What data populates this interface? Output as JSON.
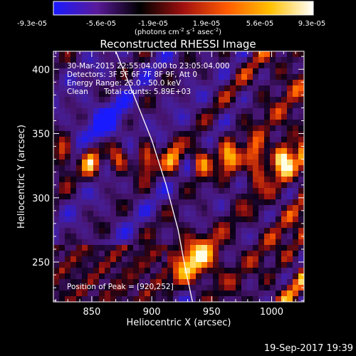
{
  "chart_data": {
    "type": "heatmap",
    "title": "Reconstructed RHESSI Image",
    "xlabel": "Heliocentric X (arcsec)",
    "ylabel": "Heliocentric Y (arcsec)",
    "xlim": [
      818,
      1027
    ],
    "ylim": [
      219,
      414
    ],
    "xticks": [
      850,
      900,
      950,
      1000
    ],
    "yticks": [
      250,
      300,
      350,
      400
    ],
    "colorbar": {
      "ticks": [
        "-9.3e-05",
        "-5.6e-05",
        "-1.9e-05",
        "1.9e-05",
        "5.6e-05",
        "9.3e-05"
      ],
      "unit_main": "(photons cm",
      "unit_exp1": "-2",
      "unit_mid": " s",
      "unit_exp2": "-1",
      "unit_after": " asec",
      "unit_exp3": "-2",
      "unit_close": ")",
      "colors": [
        "#1a1aff",
        "#5a1a9a",
        "#000000",
        "#a01010",
        "#ff5a00",
        "#ffc000",
        "#ffffff"
      ]
    },
    "annotations": {
      "time_range": "30-Mar-2015 22:55:04.000 to 23:05:04.000",
      "detectors": "Detectors: 3F 5F 6F 7F 8F 9F, Att 0",
      "energy_range": "Energy Range: 25.0 - 50.0 keV",
      "method": "Clean",
      "total_counts": "Total counts: 5.89E+03",
      "peak": "Position of Peak = [920,252]"
    },
    "limb_curve": [
      [
        870,
        414
      ],
      [
        885,
        380
      ],
      [
        900,
        345
      ],
      [
        912,
        310
      ],
      [
        922,
        275
      ],
      [
        928,
        245
      ],
      [
        934,
        219
      ]
    ]
  },
  "footer": {
    "date": "19-Sep-2017 19:39"
  }
}
